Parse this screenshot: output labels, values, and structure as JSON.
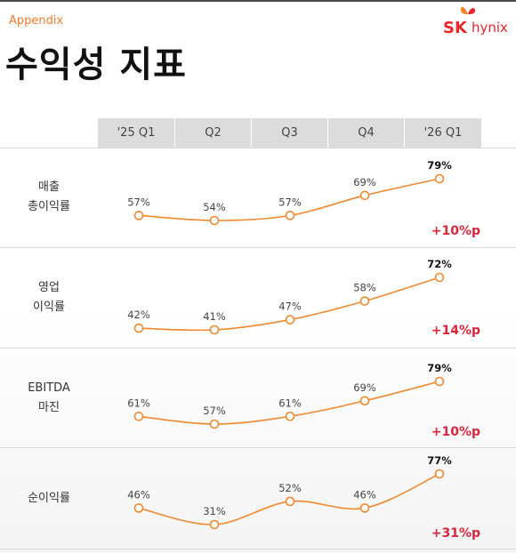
{
  "header": {
    "section": "Appendix",
    "title": "수익성 지표",
    "logo": {
      "brand": "SK",
      "name": "hynix"
    }
  },
  "colors": {
    "line": "#f0882e",
    "accent": "#d7263d",
    "header_bg": "#dcdcdc"
  },
  "chart_data": {
    "type": "line",
    "categories": [
      "'25 Q1",
      "Q2",
      "Q3",
      "Q4",
      "'26 Q1"
    ],
    "series": [
      {
        "name": "매출 총이익률",
        "label_lines": [
          "매출",
          "총이익률"
        ],
        "values": [
          57,
          54,
          57,
          69,
          79
        ],
        "change": "+10%p"
      },
      {
        "name": "영업 이익률",
        "label_lines": [
          "영업",
          "이익률"
        ],
        "values": [
          42,
          41,
          47,
          58,
          72
        ],
        "change": "+14%p"
      },
      {
        "name": "EBITDA 마진",
        "label_lines": [
          "EBITDA",
          "마진"
        ],
        "values": [
          61,
          57,
          61,
          69,
          79
        ],
        "change": "+10%p"
      },
      {
        "name": "순이익률",
        "label_lines": [
          "순이익률"
        ],
        "values": [
          46,
          31,
          52,
          46,
          77
        ],
        "change": "+31%p"
      }
    ],
    "unit": "%"
  }
}
